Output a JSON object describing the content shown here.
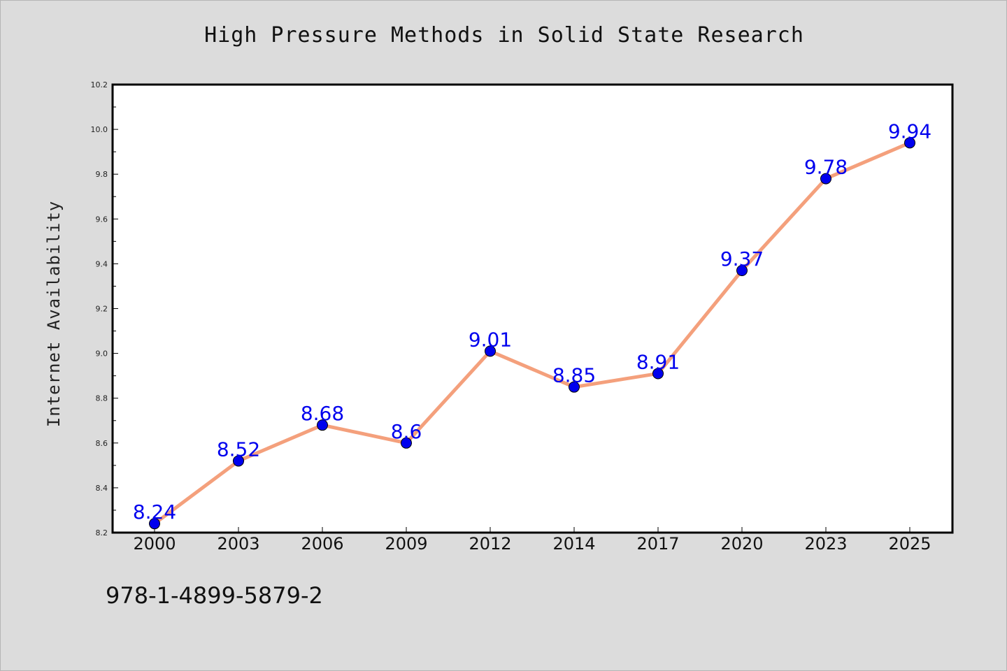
{
  "chart_data": {
    "type": "line",
    "title": "High Pressure Methods in Solid State Research",
    "xlabel": "",
    "ylabel": "Internet Availability",
    "categories": [
      "2000",
      "2003",
      "2006",
      "2009",
      "2012",
      "2014",
      "2017",
      "2020",
      "2023",
      "2025"
    ],
    "series": [
      {
        "values": [
          8.24,
          8.52,
          8.68,
          8.6,
          9.01,
          8.85,
          8.91,
          9.37,
          9.78,
          9.94
        ]
      }
    ],
    "data_labels": [
      "8.24",
      "8.52",
      "8.68",
      "8.6",
      "9.01",
      "8.85",
      "8.91",
      "9.37",
      "9.78",
      "9.94"
    ],
    "ylim": [
      8.2,
      10.2
    ],
    "yticks": [
      "8.2",
      "8.4",
      "8.6",
      "8.8",
      "9.0",
      "9.2",
      "9.4",
      "9.6",
      "9.8",
      "10.0",
      "10.2"
    ],
    "grid": false,
    "legend": "none",
    "colors": {
      "line": "#f4a07c",
      "marker": "#0000ee",
      "label": "#0000ee",
      "plot_bg": "#ffffff",
      "page_bg": "#dcdcdc"
    }
  },
  "footer": {
    "isbn": "978-1-4899-5879-2"
  }
}
